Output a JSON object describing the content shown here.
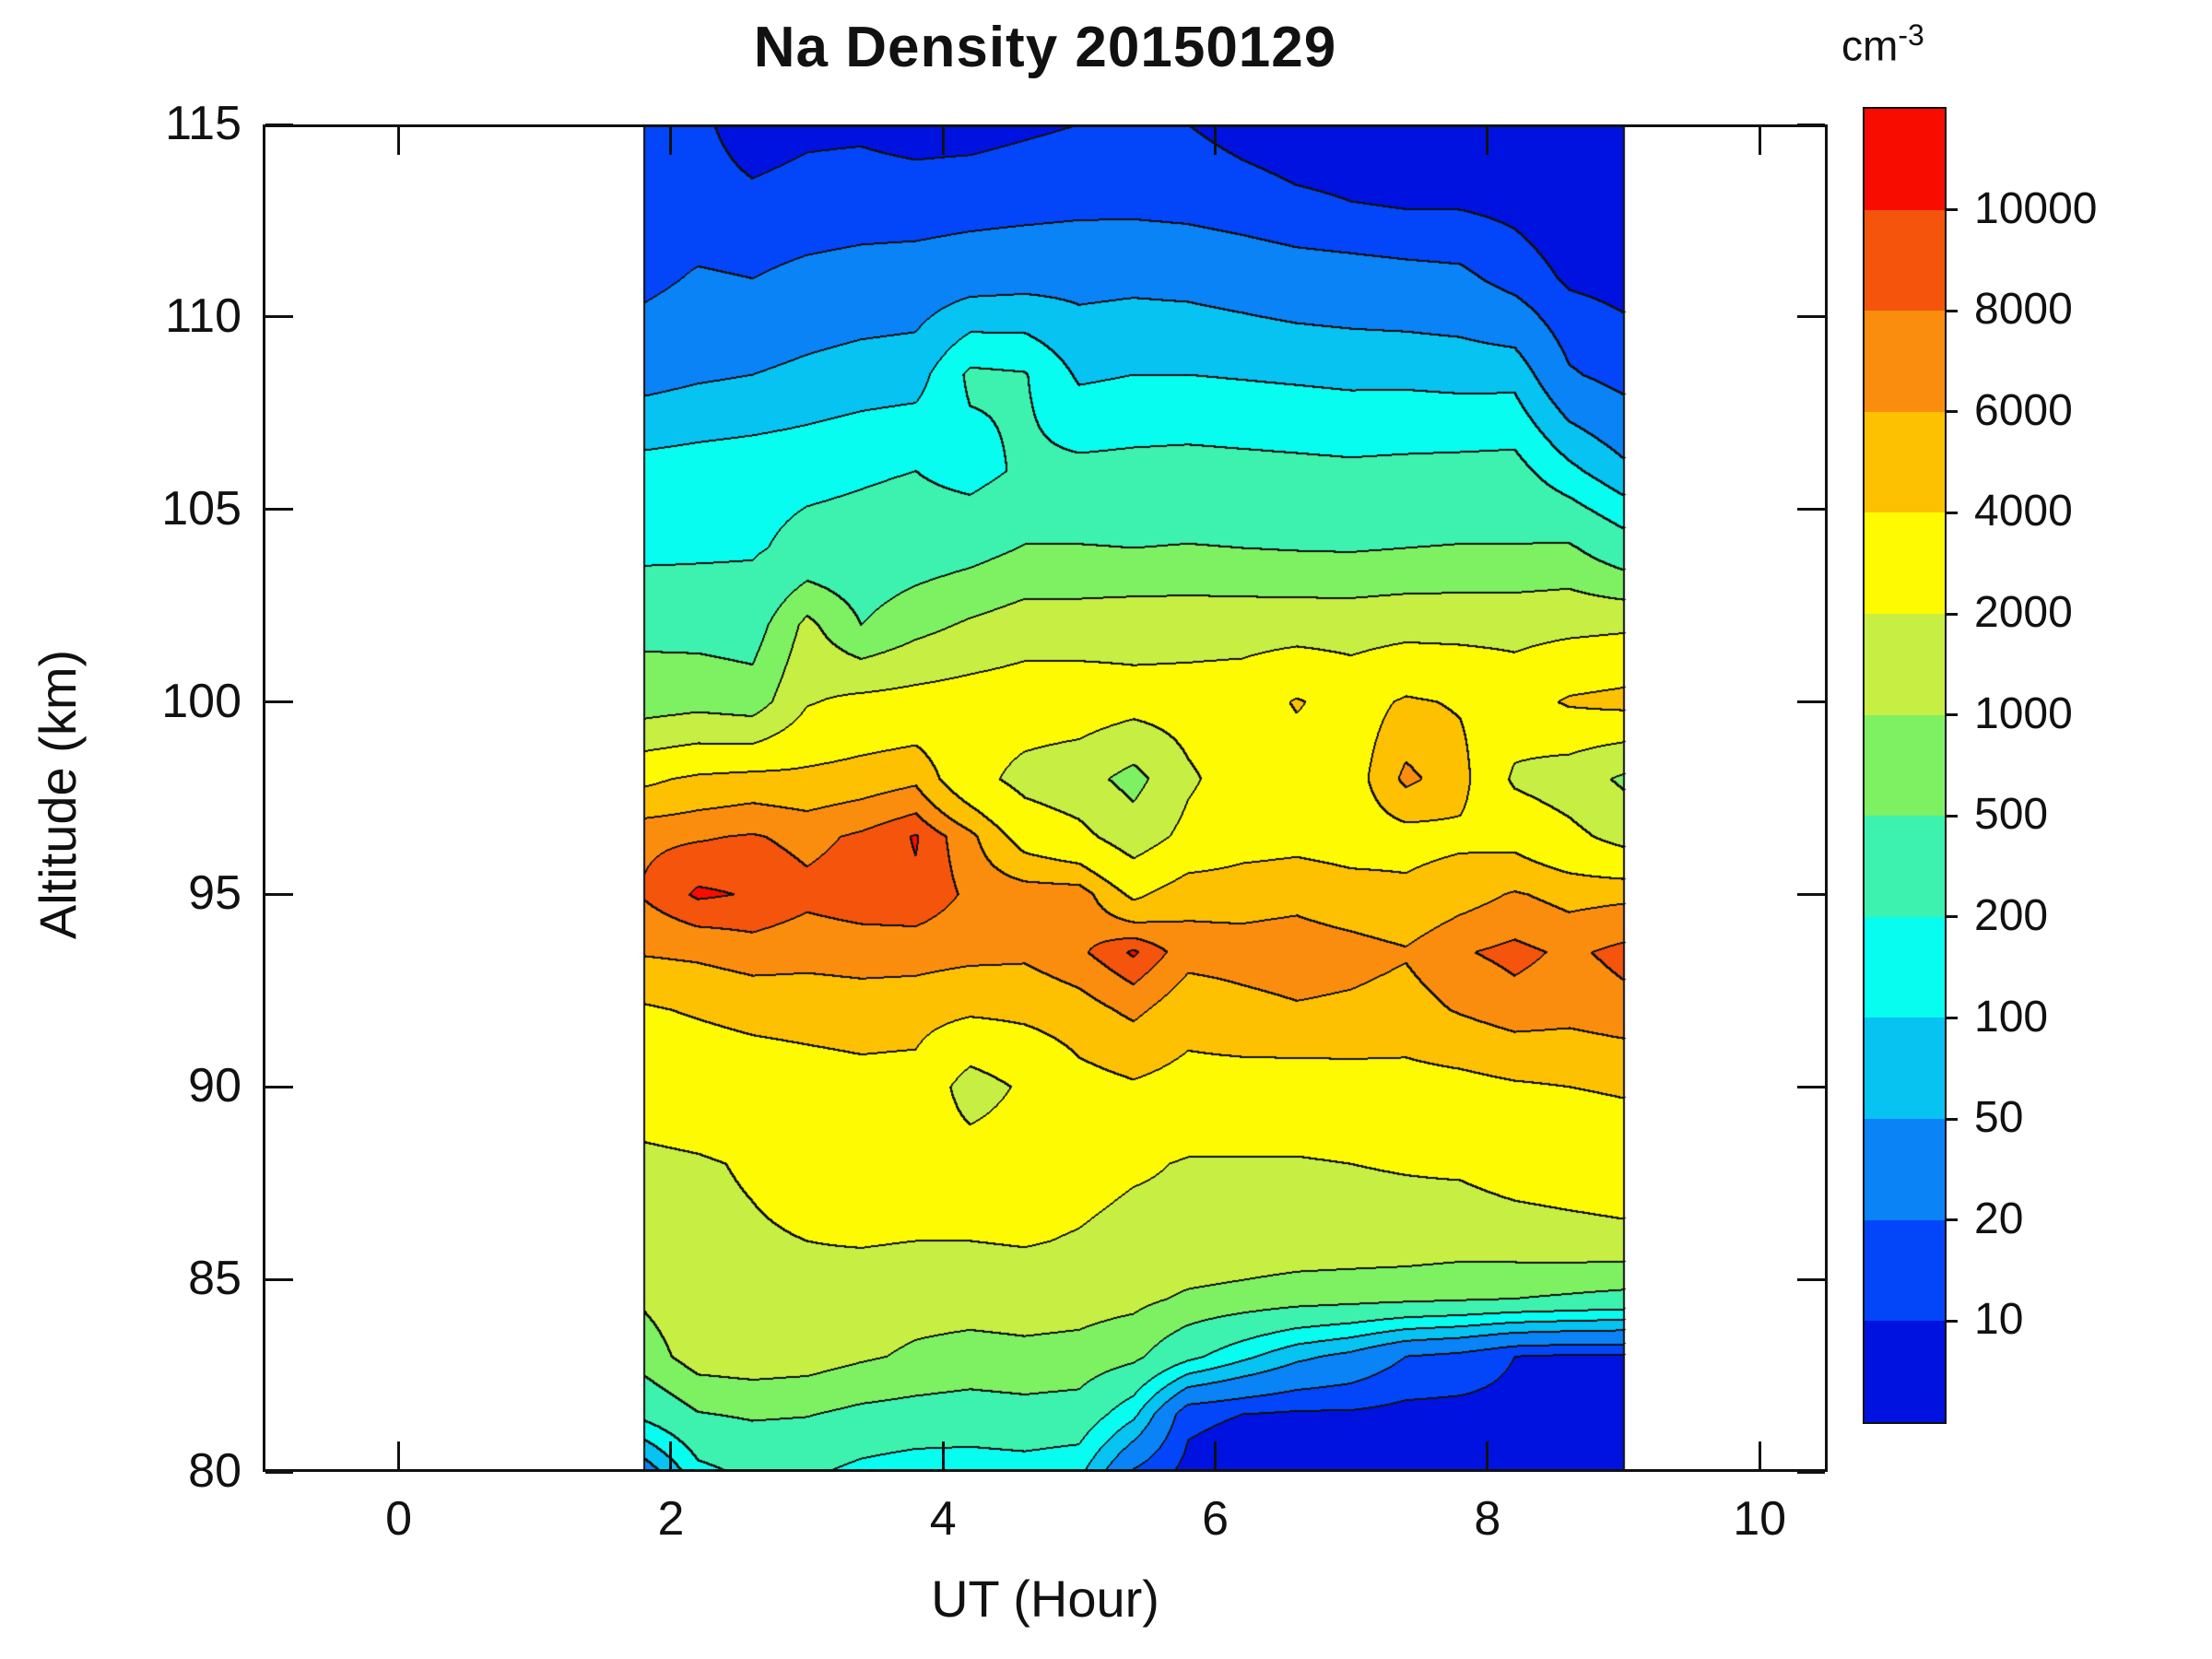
{
  "title": "Na Density 20150129",
  "axes": {
    "x_label": "UT (Hour)",
    "y_label": "Altitude (km)",
    "x_range": [
      -1,
      10.5
    ],
    "y_range": [
      80,
      115
    ],
    "x_tick_values": [
      0,
      2,
      4,
      6,
      8,
      10
    ],
    "x_tick_labels": [
      "0",
      "2",
      "4",
      "6",
      "8",
      "10"
    ],
    "y_tick_values": [
      80,
      85,
      90,
      95,
      100,
      105,
      110,
      115
    ],
    "y_tick_labels": [
      "80",
      "85",
      "90",
      "95",
      "100",
      "105",
      "110",
      "115"
    ],
    "grid": "off",
    "box": "on"
  },
  "colorbar": {
    "unit_base": "cm",
    "unit_exponent": "-3",
    "labels_top_to_bottom": [
      "10000",
      "8000",
      "6000",
      "4000",
      "2000",
      "1000",
      "500",
      "200",
      "100",
      "50",
      "20",
      "10"
    ],
    "segment_colors_top_to_bottom": [
      "#f90c00",
      "#f4540c",
      "#fb8d0e",
      "#fdc102",
      "#fdfa02",
      "#c7ef43",
      "#7ef163",
      "#3cf2ae",
      "#06fdf0",
      "#06c3f2",
      "#0983f6",
      "#0345f8",
      "#0012e0"
    ]
  },
  "chart_data": {
    "type": "filled-contour",
    "title": "Na Density 20150129",
    "xlabel": "UT (Hour)",
    "ylabel": "Altitude (km)",
    "units": "cm-3",
    "xlim": [
      -1,
      10.5
    ],
    "ylim": [
      80,
      115
    ],
    "x_data_range": [
      1.8,
      9.0
    ],
    "contour_levels": [
      10,
      20,
      50,
      100,
      200,
      500,
      1000,
      2000,
      4000,
      6000,
      8000,
      10000
    ],
    "level_colors_low_to_high": [
      "#0012e0",
      "#0345f8",
      "#0983f6",
      "#06c3f2",
      "#06fdf0",
      "#3cf2ae",
      "#7ef163",
      "#c7ef43",
      "#fdfa02",
      "#fdc102",
      "#fb8d0e",
      "#f4540c",
      "#f90c00"
    ],
    "contour_line_color": "#101010",
    "x_hours": [
      1.8,
      2.2,
      2.6,
      3.0,
      3.4,
      3.8,
      4.2,
      4.6,
      5.0,
      5.4,
      5.8,
      6.2,
      6.6,
      7.0,
      7.4,
      7.8,
      8.2,
      8.6,
      9.0
    ],
    "altitudes_km": [
      80,
      81.5,
      83,
      84.5,
      86,
      88,
      90,
      92,
      93.5,
      95,
      96.5,
      98,
      100,
      102,
      104,
      106,
      108.5,
      111,
      113,
      115
    ],
    "density_cm3_rows_by_altitude": [
      [
        30,
        160,
        240,
        230,
        160,
        130,
        130,
        140,
        120,
        18,
        8,
        6,
        6,
        6,
        5,
        5,
        5,
        5,
        5
      ],
      [
        250,
        480,
        550,
        520,
        420,
        380,
        350,
        380,
        350,
        120,
        12,
        10,
        9,
        9,
        8,
        8,
        8,
        8,
        8
      ],
      [
        700,
        1400,
        1500,
        1400,
        1100,
        900,
        800,
        850,
        800,
        600,
        250,
        120,
        60,
        40,
        20,
        16,
        10,
        9,
        9
      ],
      [
        1100,
        1600,
        1700,
        1600,
        1400,
        1300,
        1300,
        1350,
        1300,
        1200,
        900,
        800,
        700,
        650,
        600,
        550,
        500,
        450,
        400
      ],
      [
        1600,
        1800,
        1900,
        2000,
        2100,
        2000,
        2000,
        2100,
        1900,
        1600,
        1700,
        1600,
        1500,
        1500,
        1500,
        1400,
        1500,
        1600,
        1700
      ],
      [
        1800,
        1900,
        2100,
        2400,
        2600,
        2500,
        2700,
        2800,
        2600,
        2200,
        1900,
        1900,
        1900,
        2000,
        2100,
        2200,
        2600,
        2800,
        3000
      ],
      [
        2600,
        2800,
        3000,
        3200,
        3400,
        3300,
        1500,
        2200,
        3400,
        3800,
        3400,
        3300,
        3200,
        3300,
        3400,
        3500,
        3800,
        4000,
        4200
      ],
      [
        3800,
        4200,
        4600,
        4800,
        5000,
        4900,
        4400,
        4600,
        5200,
        6500,
        4800,
        5400,
        5800,
        5600,
        5200,
        6200,
        7200,
        6800,
        7400
      ],
      [
        6200,
        6500,
        7200,
        6800,
        7000,
        6900,
        6600,
        6400,
        7600,
        10400,
        6800,
        6900,
        7200,
        6800,
        6200,
        7800,
        8600,
        7600,
        8600
      ],
      [
        8200,
        10400,
        9800,
        8600,
        9200,
        9600,
        7600,
        7200,
        7200,
        3600,
        5400,
        5200,
        5400,
        4800,
        4400,
        5200,
        6200,
        5400,
        5600
      ],
      [
        7600,
        7800,
        8200,
        7400,
        8400,
        10200,
        6600,
        3200,
        2400,
        1400,
        2400,
        3200,
        3400,
        3200,
        3400,
        3600,
        3400,
        2400,
        1600
      ],
      [
        3600,
        4400,
        4800,
        4600,
        5000,
        5600,
        2600,
        1600,
        1300,
        800,
        1800,
        2800,
        3000,
        3200,
        6600,
        4800,
        1800,
        1400,
        900
      ],
      [
        700,
        800,
        700,
        1900,
        2400,
        2600,
        2800,
        3000,
        3000,
        2600,
        2700,
        2900,
        4200,
        3100,
        4300,
        3800,
        3000,
        4300,
        4800
      ],
      [
        420,
        380,
        350,
        1200,
        500,
        800,
        1100,
        1400,
        1400,
        1500,
        1500,
        1500,
        1500,
        1500,
        1600,
        1600,
        1600,
        1700,
        1800
      ],
      [
        160,
        170,
        180,
        260,
        280,
        320,
        380,
        520,
        520,
        500,
        520,
        500,
        480,
        470,
        500,
        520,
        520,
        550,
        300
      ],
      [
        130,
        140,
        150,
        160,
        180,
        200,
        150,
        230,
        240,
        250,
        260,
        250,
        240,
        230,
        240,
        250,
        260,
        120,
        60
      ],
      [
        38,
        45,
        50,
        60,
        70,
        75,
        230,
        210,
        90,
        100,
        100,
        95,
        90,
        85,
        85,
        80,
        80,
        22,
        15
      ],
      [
        16,
        22,
        20,
        25,
        28,
        30,
        35,
        38,
        40,
        42,
        40,
        35,
        30,
        28,
        26,
        24,
        15,
        9,
        8
      ],
      [
        13,
        12,
        11,
        12,
        13,
        13,
        14,
        15,
        16,
        16,
        15,
        13,
        11,
        10,
        9,
        9,
        8,
        6,
        6
      ],
      [
        11,
        11,
        8,
        9,
        9,
        8,
        8,
        9,
        10,
        11,
        10,
        8,
        7,
        7,
        6,
        6,
        6,
        5,
        5
      ]
    ]
  }
}
